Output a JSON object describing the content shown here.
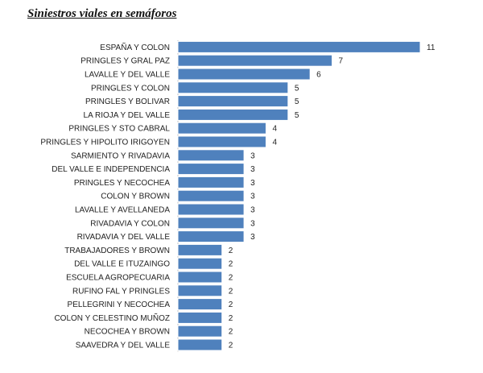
{
  "chart_data": {
    "type": "bar",
    "orientation": "horizontal",
    "title": "Siniestros viales en semáforos",
    "categories": [
      "ESPAÑA Y COLON",
      "PRINGLES Y GRAL PAZ",
      "LAVALLE Y DEL VALLE",
      "PRINGLES Y COLON",
      "PRINGLES Y BOLIVAR",
      "LA RIOJA Y DEL VALLE",
      "PRINGLES Y STO CABRAL",
      "PRINGLES Y HIPOLITO IRIGOYEN",
      "SARMIENTO Y RIVADAVIA",
      "DEL VALLE E INDEPENDENCIA",
      "PRINGLES Y NECOCHEA",
      "COLON Y BROWN",
      "LAVALLE Y AVELLANEDA",
      "RIVADAVIA Y COLON",
      "RIVADAVIA Y DEL VALLE",
      "TRABAJADORES Y BROWN",
      "DEL VALLE E ITUZAINGO",
      "ESCUELA AGROPECUARIA",
      "RUFINO FAL Y PRINGLES",
      "PELLEGRINI Y NECOCHEA",
      "COLON Y CELESTINO MUÑOZ",
      "NECOCHEA Y BROWN",
      "SAAVEDRA Y DEL VALLE"
    ],
    "values": [
      11,
      7,
      6,
      5,
      5,
      5,
      4,
      4,
      3,
      3,
      3,
      3,
      3,
      3,
      3,
      2,
      2,
      2,
      2,
      2,
      2,
      2,
      2
    ],
    "xlim": [
      0,
      11
    ],
    "grid": false,
    "legend": "none",
    "bar_color": "#4f81bd",
    "bar_edge_color": "#ffffff"
  }
}
